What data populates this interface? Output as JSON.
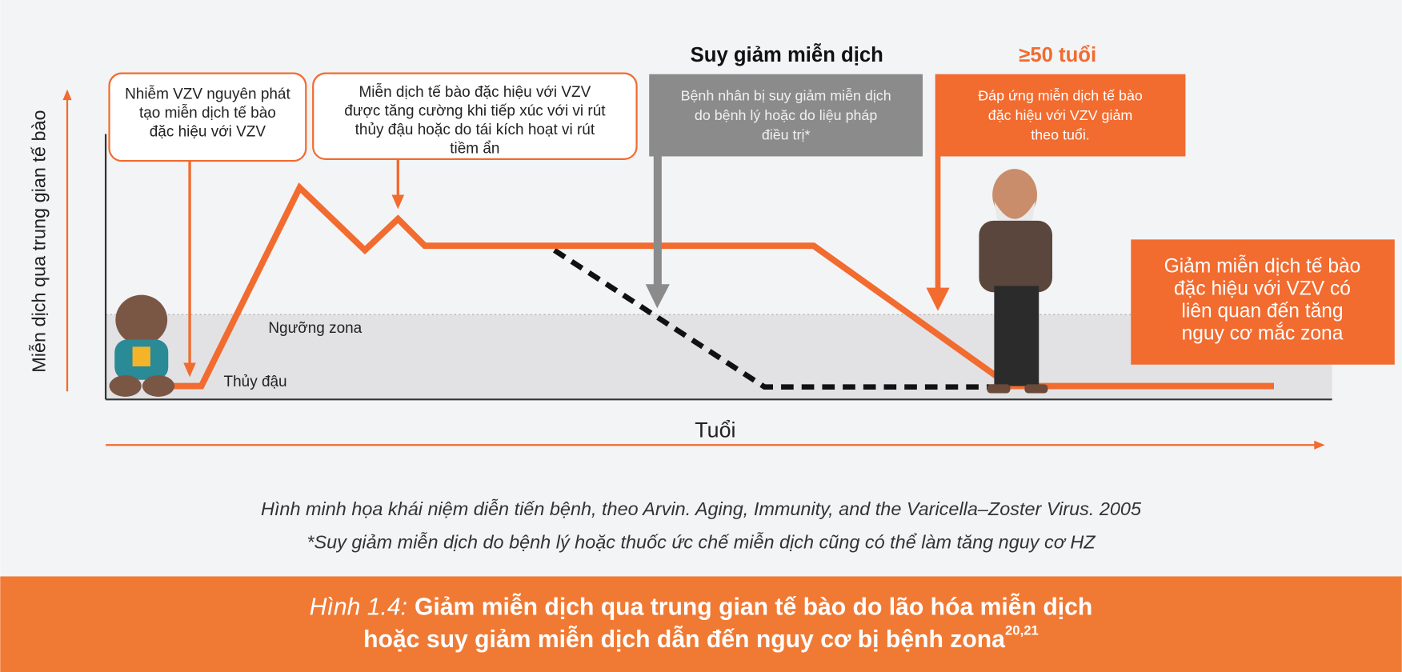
{
  "y_axis_label": "Miễn dịch qua trung gian tế bào",
  "x_axis_label": "Tuổi",
  "zones": {
    "threshold": "Ngưỡng zona",
    "chickenpox": "Thủy đậu"
  },
  "headings": {
    "immunosuppression": "Suy giảm miễn dịch",
    "age": "≥50 tuổi"
  },
  "callouts": [
    {
      "lines": [
        "Nhiễm VZV nguyên phát",
        "tạo miễn dịch tế bào",
        "đặc hiệu với VZV"
      ]
    },
    {
      "lines": [
        "Miễn dịch tế bào đặc hiệu với VZV",
        "được tăng cường khi tiếp xúc với vi rút",
        "thủy đậu hoặc do tái kích hoạt vi rút",
        "tiềm ẩn"
      ]
    },
    {
      "lines": [
        "Bệnh nhân bị suy giảm miễn dịch",
        "do bệnh lý hoặc do liệu pháp",
        "điều trị*"
      ]
    },
    {
      "lines": [
        "Đáp ứng miễn dịch tế bào",
        "đặc hiệu với VZV giảm",
        "theo tuổi."
      ]
    },
    {
      "lines": [
        "Giảm miễn dịch tế bào",
        "đặc hiệu với VZV có",
        "liên quan đến tăng",
        "nguy cơ mắc zona"
      ]
    }
  ],
  "caption": [
    "Hình minh họa khái niệm diễn tiến bệnh, theo Arvin. Aging, Immunity, and the Varicella–Zoster Virus. 2005",
    "*Suy giảm miễn dịch do bệnh lý hoặc thuốc ức chế miễn dịch cũng có thể làm tăng nguy cơ HZ"
  ],
  "figure_title": {
    "prefix": "Hình 1.4:",
    "lines": [
      "Giảm miễn dịch qua trung gian tế bào do lão hóa miễn dịch",
      "hoặc suy giảm miễn dịch dẫn đến nguy cơ bị bệnh zona"
    ],
    "superscript": "20,21"
  }
}
